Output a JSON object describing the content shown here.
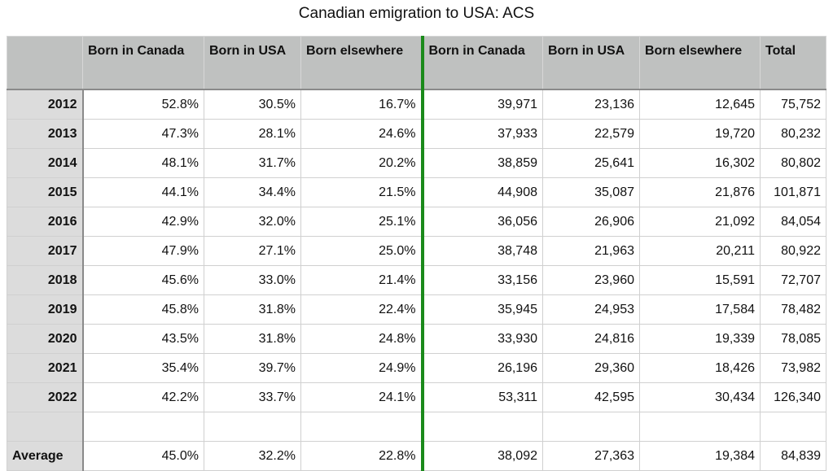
{
  "chart_data": {
    "type": "table",
    "title": "Canadian emigration to USA: ACS",
    "columns": [
      "",
      "Born in Canada",
      "Born in USA",
      "Born elsewhere",
      "Born in Canada",
      "Born in USA",
      "Born elsewhere",
      "Total"
    ],
    "rows": [
      [
        "2012",
        "52.8%",
        "30.5%",
        "16.7%",
        "39,971",
        "23,136",
        "12,645",
        "75,752"
      ],
      [
        "2013",
        "47.3%",
        "28.1%",
        "24.6%",
        "37,933",
        "22,579",
        "19,720",
        "80,232"
      ],
      [
        "2014",
        "48.1%",
        "31.7%",
        "20.2%",
        "38,859",
        "25,641",
        "16,302",
        "80,802"
      ],
      [
        "2015",
        "44.1%",
        "34.4%",
        "21.5%",
        "44,908",
        "35,087",
        "21,876",
        "101,871"
      ],
      [
        "2016",
        "42.9%",
        "32.0%",
        "25.1%",
        "36,056",
        "26,906",
        "21,092",
        "84,054"
      ],
      [
        "2017",
        "47.9%",
        "27.1%",
        "25.0%",
        "38,748",
        "21,963",
        "20,211",
        "80,922"
      ],
      [
        "2018",
        "45.6%",
        "33.0%",
        "21.4%",
        "33,156",
        "23,960",
        "15,591",
        "72,707"
      ],
      [
        "2019",
        "45.8%",
        "31.8%",
        "22.4%",
        "35,945",
        "24,953",
        "17,584",
        "78,482"
      ],
      [
        "2020",
        "43.5%",
        "31.8%",
        "24.8%",
        "33,930",
        "24,816",
        "19,339",
        "78,085"
      ],
      [
        "2021",
        "35.4%",
        "39.7%",
        "24.9%",
        "26,196",
        "29,360",
        "18,426",
        "73,982"
      ],
      [
        "2022",
        "42.2%",
        "33.7%",
        "24.1%",
        "53,311",
        "42,595",
        "30,434",
        "126,340"
      ],
      [
        "",
        "",
        "",
        "",
        "",
        "",
        "",
        ""
      ],
      [
        "Average",
        "45.0%",
        "32.2%",
        "22.8%",
        "38,092",
        "27,363",
        "19,384",
        "84,839"
      ]
    ],
    "separator_color": "#1a8a1a"
  }
}
